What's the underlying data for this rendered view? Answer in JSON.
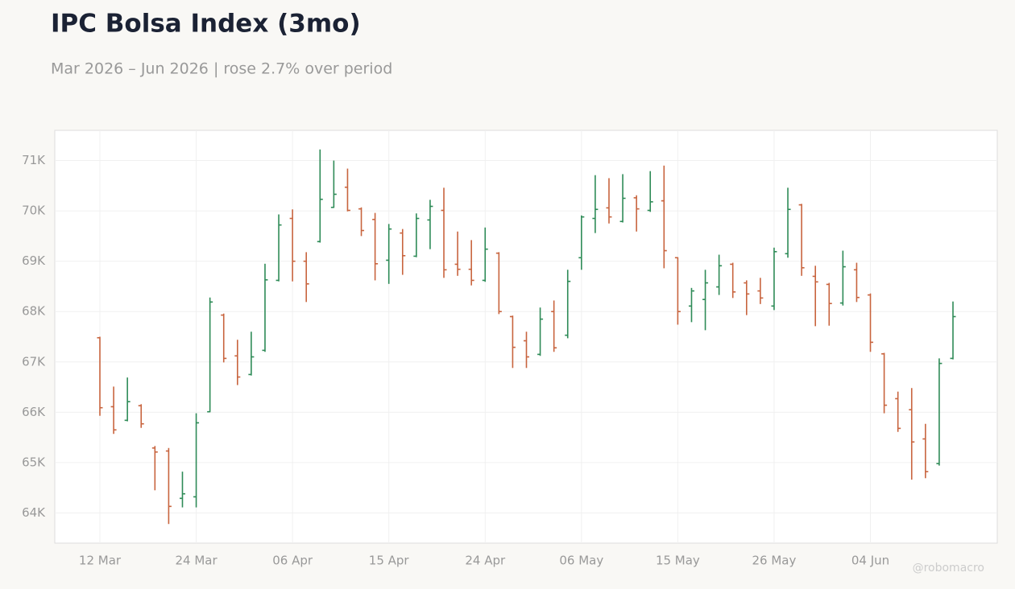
{
  "chart_data": {
    "type": "ohlc",
    "title": "IPC Bolsa Index (3mo)",
    "subtitle": "Mar 2026 – Jun 2026 | rose 2.7% over period",
    "watermark": "@robomacro",
    "up_color": "#2e8b57",
    "down_color": "#c8643e",
    "grid": true,
    "categories": [
      "12 Mar",
      null,
      null,
      null,
      null,
      null,
      null,
      "24 Mar",
      null,
      null,
      null,
      null,
      null,
      null,
      "06 Apr",
      null,
      null,
      null,
      null,
      null,
      null,
      "15 Apr",
      null,
      null,
      null,
      null,
      null,
      null,
      "24 Apr",
      null,
      null,
      null,
      null,
      null,
      null,
      "06 May",
      null,
      null,
      null,
      null,
      null,
      null,
      "15 May",
      null,
      null,
      null,
      null,
      null,
      null,
      "26 May",
      null,
      null,
      null,
      null,
      null,
      null,
      "04 Jun",
      null,
      null,
      null,
      null,
      null,
      null
    ],
    "open": [
      67480,
      66110,
      65840,
      66130,
      65290,
      65230,
      64290,
      64320,
      66010,
      67930,
      67120,
      66750,
      67230,
      68620,
      69850,
      69000,
      69390,
      70070,
      70470,
      70040,
      69830,
      69020,
      69560,
      69100,
      69820,
      70010,
      68940,
      68840,
      68620,
      69160,
      67900,
      67420,
      67150,
      68000,
      67530,
      69070,
      69850,
      70060,
      69790,
      70260,
      70010,
      70200,
      69070,
      68110,
      68240,
      68490,
      68940,
      68570,
      68410,
      68110,
      69150,
      70120,
      68700,
      68540,
      68170,
      68830,
      68330,
      67160,
      66270,
      66050,
      65470,
      64980,
      67070
    ],
    "high": [
      67500,
      66510,
      66690,
      66160,
      65330,
      65290,
      64820,
      65980,
      68280,
      67960,
      67440,
      67600,
      68950,
      69930,
      70030,
      69180,
      71220,
      71000,
      70840,
      70070,
      69960,
      69740,
      69640,
      69950,
      70220,
      70460,
      69590,
      69420,
      69670,
      69180,
      67920,
      67600,
      68080,
      68220,
      68830,
      69910,
      70710,
      70650,
      70730,
      70310,
      70790,
      70900,
      69080,
      68470,
      68830,
      69130,
      68970,
      68620,
      68670,
      69270,
      70460,
      70140,
      68910,
      68570,
      69210,
      68970,
      68360,
      67180,
      66410,
      66480,
      65770,
      67070,
      68200
    ],
    "low": [
      65930,
      65570,
      65820,
      65690,
      64450,
      63780,
      64110,
      64110,
      66000,
      66990,
      66540,
      66730,
      67200,
      68600,
      68600,
      68190,
      69370,
      70060,
      69990,
      69500,
      68620,
      68550,
      68730,
      69080,
      69240,
      68670,
      68710,
      68520,
      68590,
      67950,
      66880,
      66880,
      67120,
      67200,
      67470,
      68830,
      69560,
      69750,
      69770,
      69590,
      69980,
      68860,
      67740,
      67790,
      67630,
      68330,
      68270,
      67930,
      68150,
      68030,
      69070,
      68710,
      67710,
      67720,
      68120,
      68190,
      67200,
      65980,
      65610,
      64660,
      64690,
      64940,
      67050
    ],
    "close": [
      66090,
      65650,
      66210,
      65770,
      65210,
      64130,
      64380,
      65790,
      68190,
      67070,
      66700,
      67100,
      68630,
      69720,
      69000,
      68550,
      70230,
      70330,
      70010,
      69610,
      68950,
      69640,
      69110,
      69850,
      70090,
      68830,
      68840,
      68620,
      69240,
      68000,
      67290,
      67100,
      67850,
      67280,
      68600,
      69880,
      70030,
      69880,
      70250,
      70040,
      70180,
      69210,
      68000,
      68410,
      68570,
      68910,
      68390,
      68350,
      68270,
      69190,
      70030,
      68870,
      68590,
      68160,
      68890,
      68280,
      67390,
      66140,
      65680,
      65410,
      64820,
      66970,
      67900
    ],
    "ylim": [
      63400,
      71600
    ],
    "yticks": [
      {
        "value": 64000,
        "label": "64K"
      },
      {
        "value": 65000,
        "label": "65K"
      },
      {
        "value": 66000,
        "label": "66K"
      },
      {
        "value": 67000,
        "label": "67K"
      },
      {
        "value": 68000,
        "label": "68K"
      },
      {
        "value": 69000,
        "label": "69K"
      },
      {
        "value": 70000,
        "label": "70K"
      },
      {
        "value": 71000,
        "label": "71K"
      }
    ]
  }
}
